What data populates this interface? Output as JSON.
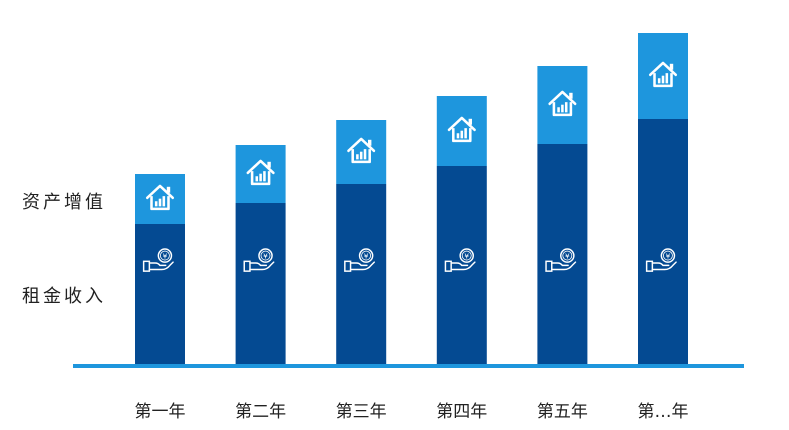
{
  "chart_data": {
    "type": "bar",
    "stacked": true,
    "categories": [
      "第一年",
      "第二年",
      "第三年",
      "第四年",
      "第五年",
      "第…年"
    ],
    "series": [
      {
        "name": "租金收入",
        "color": "#044a92",
        "icon": "hand-yen-coin-icon",
        "values": [
          140,
          161,
          180,
          198,
          220,
          245
        ]
      },
      {
        "name": "资产增值",
        "color": "#1e96dd",
        "icon": "house-chart-icon",
        "values": [
          50,
          58,
          64,
          70,
          78,
          86
        ]
      }
    ],
    "ylim": [
      0,
      332
    ],
    "legend_position": "left",
    "grid": false,
    "baseline_color": "#1e96dd"
  }
}
